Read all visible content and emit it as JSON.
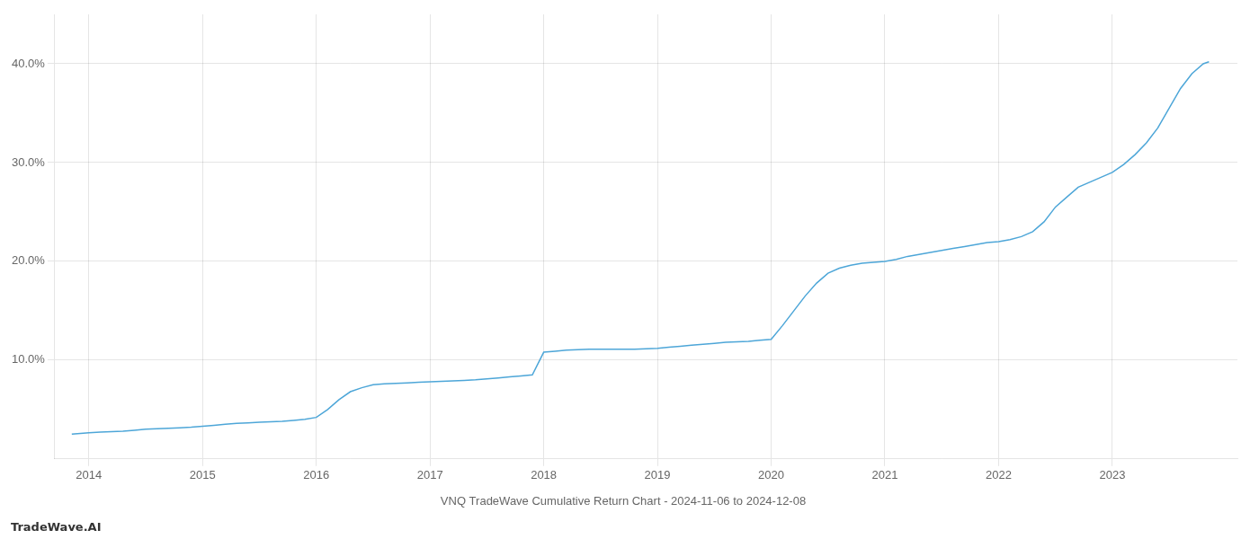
{
  "chart_data": {
    "type": "line",
    "title": "VNQ TradeWave Cumulative Return Chart - 2024-11-06 to 2024-12-08",
    "annotations": [
      "TradeWave.AI"
    ],
    "color": "#4da6d8",
    "grid": true,
    "x": [
      2013.85,
      2013.95,
      2014.0,
      2014.1,
      2014.2,
      2014.3,
      2014.4,
      2014.5,
      2014.6,
      2014.7,
      2014.8,
      2014.9,
      2015.0,
      2015.1,
      2015.2,
      2015.3,
      2015.4,
      2015.5,
      2015.6,
      2015.7,
      2015.8,
      2015.9,
      2016.0,
      2016.1,
      2016.2,
      2016.3,
      2016.4,
      2016.5,
      2016.6,
      2016.7,
      2016.8,
      2016.9,
      2017.0,
      2017.1,
      2017.2,
      2017.3,
      2017.4,
      2017.5,
      2017.6,
      2017.7,
      2017.8,
      2017.9,
      2018.0,
      2018.1,
      2018.2,
      2018.3,
      2018.4,
      2018.5,
      2018.6,
      2018.7,
      2018.8,
      2018.9,
      2019.0,
      2019.1,
      2019.2,
      2019.3,
      2019.4,
      2019.5,
      2019.6,
      2019.7,
      2019.8,
      2019.9,
      2020.0,
      2020.1,
      2020.2,
      2020.3,
      2020.4,
      2020.5,
      2020.6,
      2020.7,
      2020.8,
      2020.9,
      2021.0,
      2021.1,
      2021.2,
      2021.3,
      2021.4,
      2021.5,
      2021.6,
      2021.7,
      2021.8,
      2021.9,
      2022.0,
      2022.1,
      2022.2,
      2022.3,
      2022.4,
      2022.5,
      2022.6,
      2022.7,
      2022.8,
      2022.9,
      2023.0,
      2023.1,
      2023.2,
      2023.3,
      2023.4,
      2023.5,
      2023.6,
      2023.7,
      2023.8,
      2023.85
    ],
    "values": [
      2.5,
      2.6,
      2.65,
      2.7,
      2.75,
      2.8,
      2.9,
      3.0,
      3.05,
      3.1,
      3.15,
      3.2,
      3.3,
      3.4,
      3.5,
      3.6,
      3.65,
      3.7,
      3.75,
      3.8,
      3.9,
      4.0,
      4.2,
      5.0,
      6.0,
      6.8,
      7.2,
      7.5,
      7.6,
      7.65,
      7.7,
      7.75,
      7.8,
      7.85,
      7.9,
      7.95,
      8.0,
      8.1,
      8.2,
      8.3,
      8.4,
      8.5,
      10.8,
      10.9,
      11.0,
      11.05,
      11.1,
      11.1,
      11.1,
      11.1,
      11.1,
      11.15,
      11.2,
      11.3,
      11.4,
      11.5,
      11.6,
      11.7,
      11.8,
      11.85,
      11.9,
      12.0,
      12.1,
      13.5,
      15.0,
      16.5,
      17.8,
      18.8,
      19.3,
      19.6,
      19.8,
      19.9,
      20.0,
      20.2,
      20.5,
      20.7,
      20.9,
      21.1,
      21.3,
      21.5,
      21.7,
      21.9,
      22.0,
      22.2,
      22.5,
      23.0,
      24.0,
      25.5,
      26.5,
      27.5,
      28.0,
      28.5,
      29.0,
      29.8,
      30.8,
      32.0,
      33.5,
      35.5,
      37.5,
      39.0,
      40.0,
      40.2
    ],
    "xlim": [
      2013.7,
      2024.1
    ],
    "xticks": [
      2014,
      2015,
      2016,
      2017,
      2018,
      2019,
      2020,
      2021,
      2022,
      2023
    ],
    "ylim": [
      0,
      45
    ],
    "yticks": [
      {
        "value": 10.0,
        "label": "10.0%"
      },
      {
        "value": 20.0,
        "label": "20.0%"
      },
      {
        "value": 30.0,
        "label": "30.0%"
      },
      {
        "value": 40.0,
        "label": "40.0%"
      }
    ]
  }
}
